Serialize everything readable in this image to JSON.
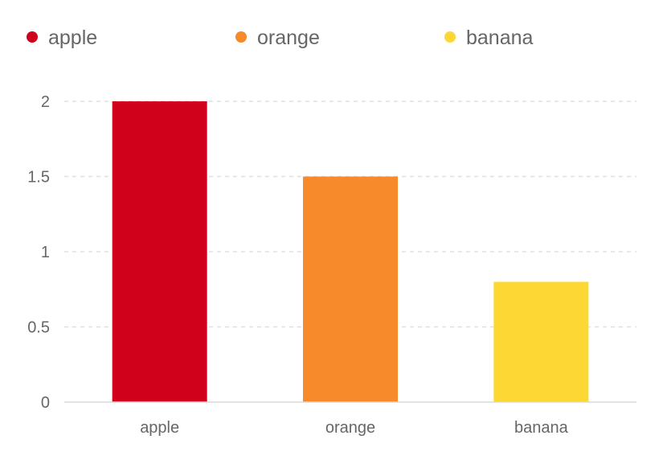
{
  "chart_data": {
    "type": "bar",
    "categories": [
      "apple",
      "orange",
      "banana"
    ],
    "values": [
      2,
      1.5,
      0.8
    ],
    "colors": [
      "#d0021b",
      "#f78a2a",
      "#fdd835"
    ],
    "legend": [
      {
        "label": "apple",
        "color": "#d0021b"
      },
      {
        "label": "orange",
        "color": "#f78a2a"
      },
      {
        "label": "banana",
        "color": "#fdd835"
      }
    ],
    "legend_position": "top",
    "y_ticks": [
      "0",
      "0.5",
      "1",
      "1.5",
      "2"
    ],
    "ylim": [
      0,
      2
    ],
    "grid": true,
    "title": "",
    "xlabel": "",
    "ylabel": ""
  }
}
